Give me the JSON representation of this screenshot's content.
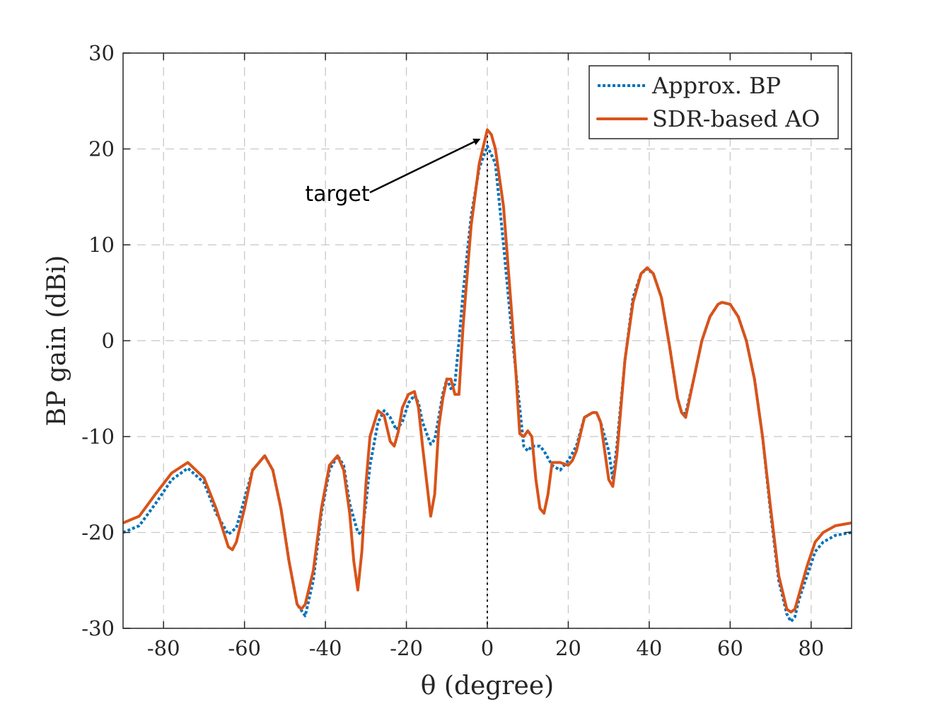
{
  "chart_data": {
    "type": "line",
    "title": "",
    "xlabel": "θ (degree)",
    "ylabel": "BP gain (dBi)",
    "xlim": [
      -90,
      90
    ],
    "ylim": [
      -30,
      30
    ],
    "xticks": [
      -80,
      -60,
      -40,
      -20,
      0,
      20,
      40,
      60,
      80
    ],
    "yticks": [
      -30,
      -20,
      -10,
      0,
      10,
      20,
      30
    ],
    "xtick_labels": [
      "-80",
      "-60",
      "-40",
      "-20",
      "0",
      "20",
      "40",
      "60",
      "80"
    ],
    "ytick_labels": [
      "-30",
      "-20",
      "-10",
      "0",
      "10",
      "20",
      "30"
    ],
    "grid": true,
    "legend_position": "top-right",
    "series": [
      {
        "name": "Approx. BP",
        "color": "#0072BD",
        "line_style": "dotted",
        "x": [
          -90,
          -86,
          -82,
          -78,
          -74,
          -70,
          -67,
          -64,
          -62,
          -60,
          -58,
          -55,
          -53,
          -51,
          -49,
          -47,
          -45,
          -43,
          -41,
          -39,
          -37,
          -35.5,
          -34,
          -32,
          -31,
          -30,
          -29,
          -27,
          -25.5,
          -24,
          -22.5,
          -21,
          -19.5,
          -18,
          -17,
          -16,
          -14,
          -13,
          -12,
          -11,
          -10,
          -9,
          -8,
          -7,
          -6,
          -4,
          -2,
          0,
          2,
          4,
          6,
          8,
          9,
          10,
          11,
          12,
          13,
          14,
          16,
          18,
          20,
          22,
          24,
          26,
          27,
          28,
          30,
          31,
          32,
          34,
          36,
          38,
          39.5,
          41,
          43,
          45,
          47,
          48,
          49,
          51,
          53,
          55,
          57,
          58,
          60,
          62,
          64,
          66,
          68,
          70,
          72,
          74,
          75,
          76,
          77,
          79,
          81,
          83,
          86,
          90
        ],
        "y": [
          -20,
          -19.3,
          -17,
          -14.5,
          -13.3,
          -14.8,
          -18,
          -20.2,
          -19.5,
          -16.5,
          -13.5,
          -12,
          -13.5,
          -17.5,
          -23,
          -27.5,
          -28.7,
          -25,
          -18,
          -13.5,
          -12,
          -13,
          -17,
          -20,
          -20.2,
          -17,
          -13,
          -8.5,
          -7.3,
          -8,
          -9.3,
          -8.5,
          -6.5,
          -5.7,
          -6.5,
          -8.5,
          -10.8,
          -10.3,
          -8,
          -5.5,
          -4,
          -5,
          -4.5,
          0,
          5,
          13,
          18,
          20.3,
          18.5,
          10,
          1,
          -7,
          -11,
          -11.5,
          -11,
          -11,
          -11,
          -11.5,
          -13,
          -13.5,
          -12.5,
          -11,
          -8,
          -7.5,
          -7.5,
          -8.5,
          -11.5,
          -14.5,
          -11,
          -2,
          4.5,
          7,
          7.5,
          7,
          4.5,
          -0.5,
          -6,
          -7.5,
          -7.6,
          -4,
          0,
          2.5,
          3.8,
          4,
          3.8,
          2.5,
          0,
          -4,
          -10,
          -18,
          -25,
          -28.5,
          -29.3,
          -28.8,
          -27,
          -24.5,
          -22,
          -21,
          -20.3,
          -20
        ]
      },
      {
        "name": "SDR-based AO",
        "color": "#D95319",
        "line_style": "solid",
        "x": [
          -90,
          -86,
          -82,
          -78,
          -74,
          -70,
          -67,
          -64,
          -63,
          -62,
          -60,
          -58,
          -55,
          -53,
          -51,
          -49,
          -47,
          -46,
          -45,
          -43,
          -41,
          -39,
          -37,
          -35.5,
          -34,
          -33,
          -32,
          -31,
          -30,
          -29,
          -27,
          -25.5,
          -24,
          -23,
          -22,
          -21,
          -19.5,
          -18,
          -17,
          -16,
          -14,
          -13,
          -12,
          -11,
          -10,
          -9,
          -8,
          -7,
          -6,
          -4,
          -2,
          0,
          1,
          2,
          4,
          6,
          7,
          8,
          9,
          10,
          11,
          12,
          13,
          14,
          15,
          16,
          18,
          20,
          21,
          22,
          24,
          26,
          27,
          28,
          30,
          31,
          32,
          34,
          36,
          38,
          39.5,
          41,
          43,
          45,
          47,
          48,
          49,
          51,
          53,
          55,
          57,
          58,
          60,
          62,
          64,
          66,
          68,
          70,
          72,
          74,
          75,
          76,
          77,
          79,
          81,
          83,
          86,
          90
        ],
        "y": [
          -19,
          -18.3,
          -16,
          -13.8,
          -12.7,
          -14.3,
          -17.5,
          -21.5,
          -21.8,
          -21,
          -17.5,
          -13.5,
          -12,
          -13.5,
          -17.5,
          -23,
          -27.5,
          -28,
          -27.5,
          -24,
          -17.5,
          -13,
          -12,
          -13.5,
          -18,
          -23,
          -26,
          -22,
          -15,
          -10,
          -7.3,
          -7.8,
          -10.5,
          -11,
          -9.5,
          -7,
          -5.6,
          -5.3,
          -7,
          -11,
          -18.3,
          -16,
          -9,
          -6,
          -4,
          -4,
          -5.6,
          -5.6,
          1.5,
          12,
          18.5,
          22,
          21.5,
          20,
          14,
          3,
          -3,
          -9.7,
          -10,
          -9.4,
          -10,
          -14.5,
          -17.5,
          -18,
          -16,
          -12.7,
          -12.7,
          -13,
          -12.5,
          -11.5,
          -8,
          -7.5,
          -7.5,
          -8.5,
          -14.5,
          -15.2,
          -12,
          -2,
          4,
          7,
          7.6,
          7,
          4.5,
          -0.5,
          -6,
          -7.5,
          -8,
          -4,
          0,
          2.5,
          3.8,
          4,
          3.8,
          2.5,
          0,
          -4,
          -10,
          -17.5,
          -24.5,
          -28,
          -28.3,
          -28,
          -26.5,
          -23.5,
          -21,
          -20,
          -19.3,
          -19
        ]
      }
    ],
    "reference_line": {
      "x": 0,
      "style": "dotted",
      "color": "#000000"
    },
    "annotations": [
      {
        "text": "target",
        "arrow_to": [
          -2,
          21
        ]
      }
    ],
    "legend": {
      "entries": [
        "Approx. BP",
        "SDR-based AO"
      ]
    }
  }
}
